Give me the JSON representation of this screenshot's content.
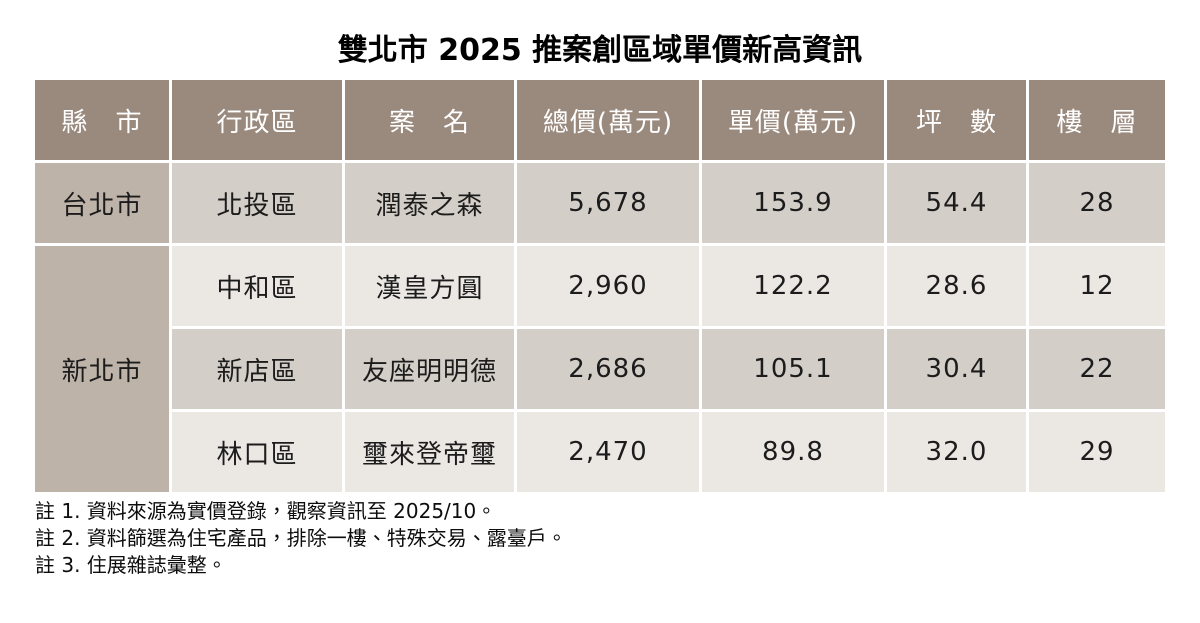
{
  "title": "雙北市 2025 推案創區域單價新高資訊",
  "chart_data": {
    "type": "table",
    "title": "雙北市 2025 推案創區域單價新高資訊",
    "columns": [
      "縣　市",
      "行政區",
      "案　名",
      "總價(萬元)",
      "單價(萬元)",
      "坪　數",
      "樓　層"
    ],
    "rows": [
      [
        "台北市",
        "北投區",
        "潤泰之森",
        "5,678",
        "153.9",
        "54.4",
        "28"
      ],
      [
        "新北市",
        "中和區",
        "漢皇方圓",
        "2,960",
        "122.2",
        "28.6",
        "12"
      ],
      [
        "新北市",
        "新店區",
        "友座明明德",
        "2,686",
        "105.1",
        "30.4",
        "22"
      ],
      [
        "新北市",
        "林口區",
        "璽來登帝璽",
        "2,470",
        "89.8",
        "32.0",
        "29"
      ]
    ],
    "merged_cells": [
      {
        "column": "縣　市",
        "value": "新北市",
        "spans_rows": [
          2,
          3,
          4
        ]
      }
    ],
    "layout_hints": {
      "header_row": true,
      "alternating_row_shading": true,
      "cell_gap_color": "#ffffff"
    }
  },
  "notes": [
    "註 1. 資料來源為實價登錄，觀察資訊至 2025/10。",
    "註 2. 資料篩選為住宅產品，排除一樓、特殊交易、露臺戶。",
    "註 3. 住展雜誌彙整。"
  ],
  "colors": {
    "header_bg": "#9a8a7e",
    "header_text": "#ffffff",
    "city_bg": "#beb3a9",
    "row_odd_bg": "#d4cec8",
    "row_even_bg": "#ebe8e4",
    "cell_text": "#1c1c1c",
    "page_bg": "#ffffff"
  }
}
